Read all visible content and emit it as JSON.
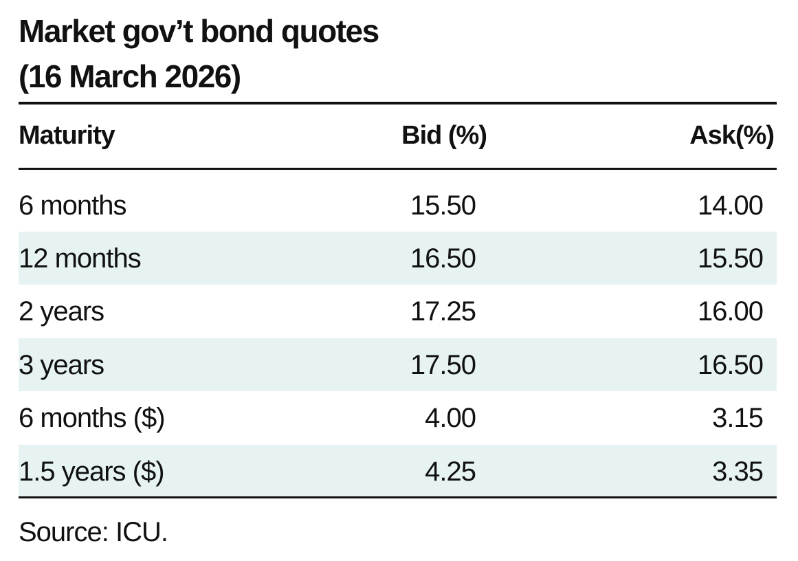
{
  "header": {
    "title": [
      "Market gov’t bond quotes",
      "(16 March 2026)"
    ]
  },
  "table": {
    "columns": [
      "Maturity",
      "Bid (%)",
      "Ask(%)"
    ],
    "rows": [
      [
        "6 months",
        "15.50",
        "14.00"
      ],
      [
        "12 months",
        "16.50",
        "15.50"
      ],
      [
        "2 years",
        "17.25",
        "16.00"
      ],
      [
        "3 years",
        "17.50",
        "16.50"
      ],
      [
        "6 months ($)",
        "4.00",
        "3.15"
      ],
      [
        "1.5 years ($)",
        "4.25",
        "3.35"
      ]
    ]
  },
  "footer": {
    "source": "Source: ICU."
  }
}
